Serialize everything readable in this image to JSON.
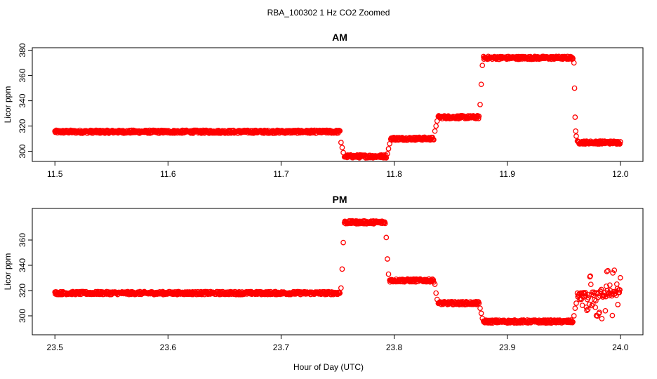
{
  "figure": {
    "title": "RBA_100302  1 Hz CO2 Zoomed",
    "xlabel": "Hour of Day (UTC)"
  },
  "colors": {
    "points": "#ff0000",
    "axis": "#000000"
  },
  "chart_data": [
    {
      "type": "scatter",
      "title": "AM",
      "ylabel": "Licor ppm",
      "xlim": [
        11.48,
        12.02
      ],
      "ylim": [
        292,
        382
      ],
      "xticks": [
        "11.5",
        "11.6",
        "11.7",
        "11.8",
        "11.9",
        "12.0"
      ],
      "yticks": [
        "300",
        "320",
        "340",
        "360",
        "380"
      ],
      "segments": [
        {
          "x": [
            11.5,
            11.752
          ],
          "y": 315.5
        },
        {
          "x": [
            11.756,
            11.793
          ],
          "y": 296
        },
        {
          "x": [
            11.797,
            11.835
          ],
          "y": 310
        },
        {
          "x": [
            11.839,
            11.875
          ],
          "y": 327
        },
        {
          "x": [
            11.879,
            11.958
          ],
          "y": 374
        },
        {
          "x": [
            11.962,
            12.0
          ],
          "y": 307
        }
      ],
      "transition_points": [
        [
          11.753,
          307
        ],
        [
          11.754,
          303
        ],
        [
          11.755,
          299
        ],
        [
          11.794,
          298
        ],
        [
          11.795,
          302
        ],
        [
          11.796,
          306
        ],
        [
          11.836,
          316
        ],
        [
          11.837,
          320
        ],
        [
          11.838,
          324
        ],
        [
          11.876,
          337
        ],
        [
          11.877,
          353
        ],
        [
          11.878,
          368
        ],
        [
          11.959,
          370
        ],
        [
          11.9595,
          350
        ],
        [
          11.96,
          327
        ],
        [
          11.9605,
          316
        ],
        [
          11.961,
          312
        ]
      ]
    },
    {
      "type": "scatter",
      "title": "PM",
      "ylabel": "Licor ppm",
      "xlim": [
        23.48,
        24.02
      ],
      "ylim": [
        285,
        385
      ],
      "xticks": [
        "23.5",
        "23.6",
        "23.7",
        "23.8",
        "23.9",
        "24.0"
      ],
      "yticks": [
        "300",
        "320",
        "340",
        "360"
      ],
      "segments": [
        {
          "x": [
            23.5,
            23.752
          ],
          "y": 318
        },
        {
          "x": [
            23.756,
            23.792
          ],
          "y": 374
        },
        {
          "x": [
            23.796,
            23.835
          ],
          "y": 328
        },
        {
          "x": [
            23.839,
            23.875
          ],
          "y": 310
        },
        {
          "x": [
            23.879,
            23.958
          ],
          "y": 295.5
        }
      ],
      "transition_points": [
        [
          23.753,
          322
        ],
        [
          23.754,
          337
        ],
        [
          23.755,
          358
        ],
        [
          23.793,
          362
        ],
        [
          23.794,
          345
        ],
        [
          23.795,
          333
        ],
        [
          23.836,
          325
        ],
        [
          23.837,
          318
        ],
        [
          23.838,
          313
        ],
        [
          23.876,
          306
        ],
        [
          23.877,
          302
        ],
        [
          23.878,
          298
        ],
        [
          23.959,
          300
        ],
        [
          23.96,
          306
        ],
        [
          23.961,
          310
        ]
      ],
      "noisy_segment": {
        "x": [
          23.962,
          24.0
        ],
        "center": 315,
        "spread": 22
      }
    }
  ]
}
